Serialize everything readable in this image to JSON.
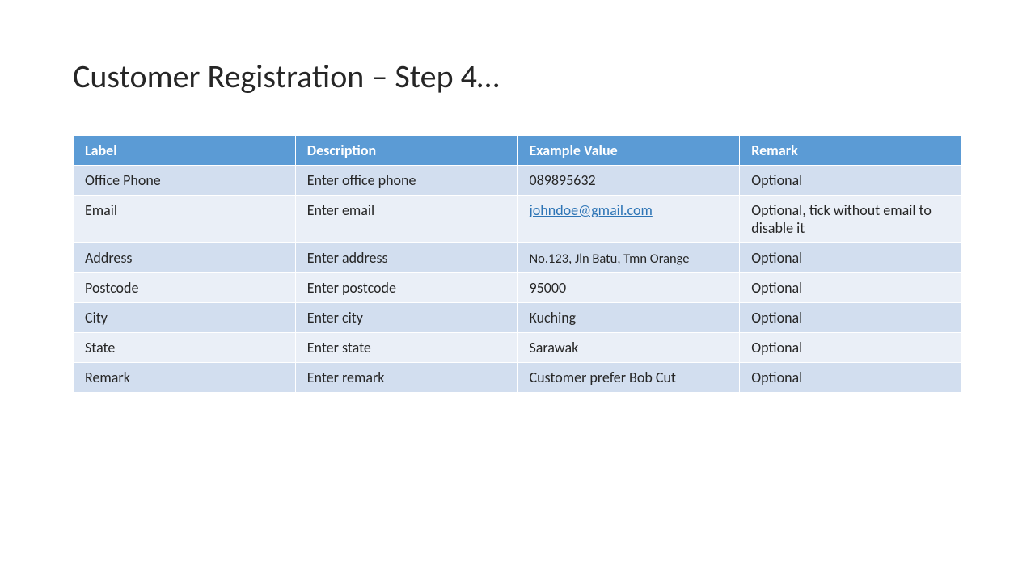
{
  "title": "Customer Registration – Step 4…",
  "table": {
    "type": "table",
    "header_bg": "#5b9bd5",
    "header_fg": "#ffffff",
    "row_odd_bg": "#d2deef",
    "row_even_bg": "#eaeff7",
    "text_color": "#262626",
    "border_color": "#ffffff",
    "font_size_header": 18,
    "font_size_body": 18,
    "columns": [
      {
        "key": "label",
        "header": "Label",
        "width": "25%"
      },
      {
        "key": "description",
        "header": "Description",
        "width": "25%"
      },
      {
        "key": "example",
        "header": "Example Value",
        "width": "25%"
      },
      {
        "key": "remark",
        "header": "Remark",
        "width": "25%"
      }
    ],
    "rows": [
      {
        "label": "Office Phone",
        "description": "Enter office phone",
        "example": "089895632",
        "remark": "Optional"
      },
      {
        "label": "Email",
        "description": "Enter email",
        "example": "johndoe@gmail.com",
        "example_is_link": true,
        "remark": "Optional, tick without email to disable it"
      },
      {
        "label": "Address",
        "description": "Enter address",
        "example": "No.123, Jln Batu, Tmn Orange",
        "example_small": true,
        "remark": "Optional"
      },
      {
        "label": "Postcode",
        "description": "Enter postcode",
        "example": "95000",
        "remark": "Optional"
      },
      {
        "label": "City",
        "description": "Enter city",
        "example": "Kuching",
        "remark": "Optional"
      },
      {
        "label": "State",
        "description": "Enter state",
        "example": "Sarawak",
        "remark": "Optional"
      },
      {
        "label": "Remark",
        "description": "Enter remark",
        "example": "Customer prefer Bob Cut",
        "remark": "Optional"
      }
    ]
  }
}
